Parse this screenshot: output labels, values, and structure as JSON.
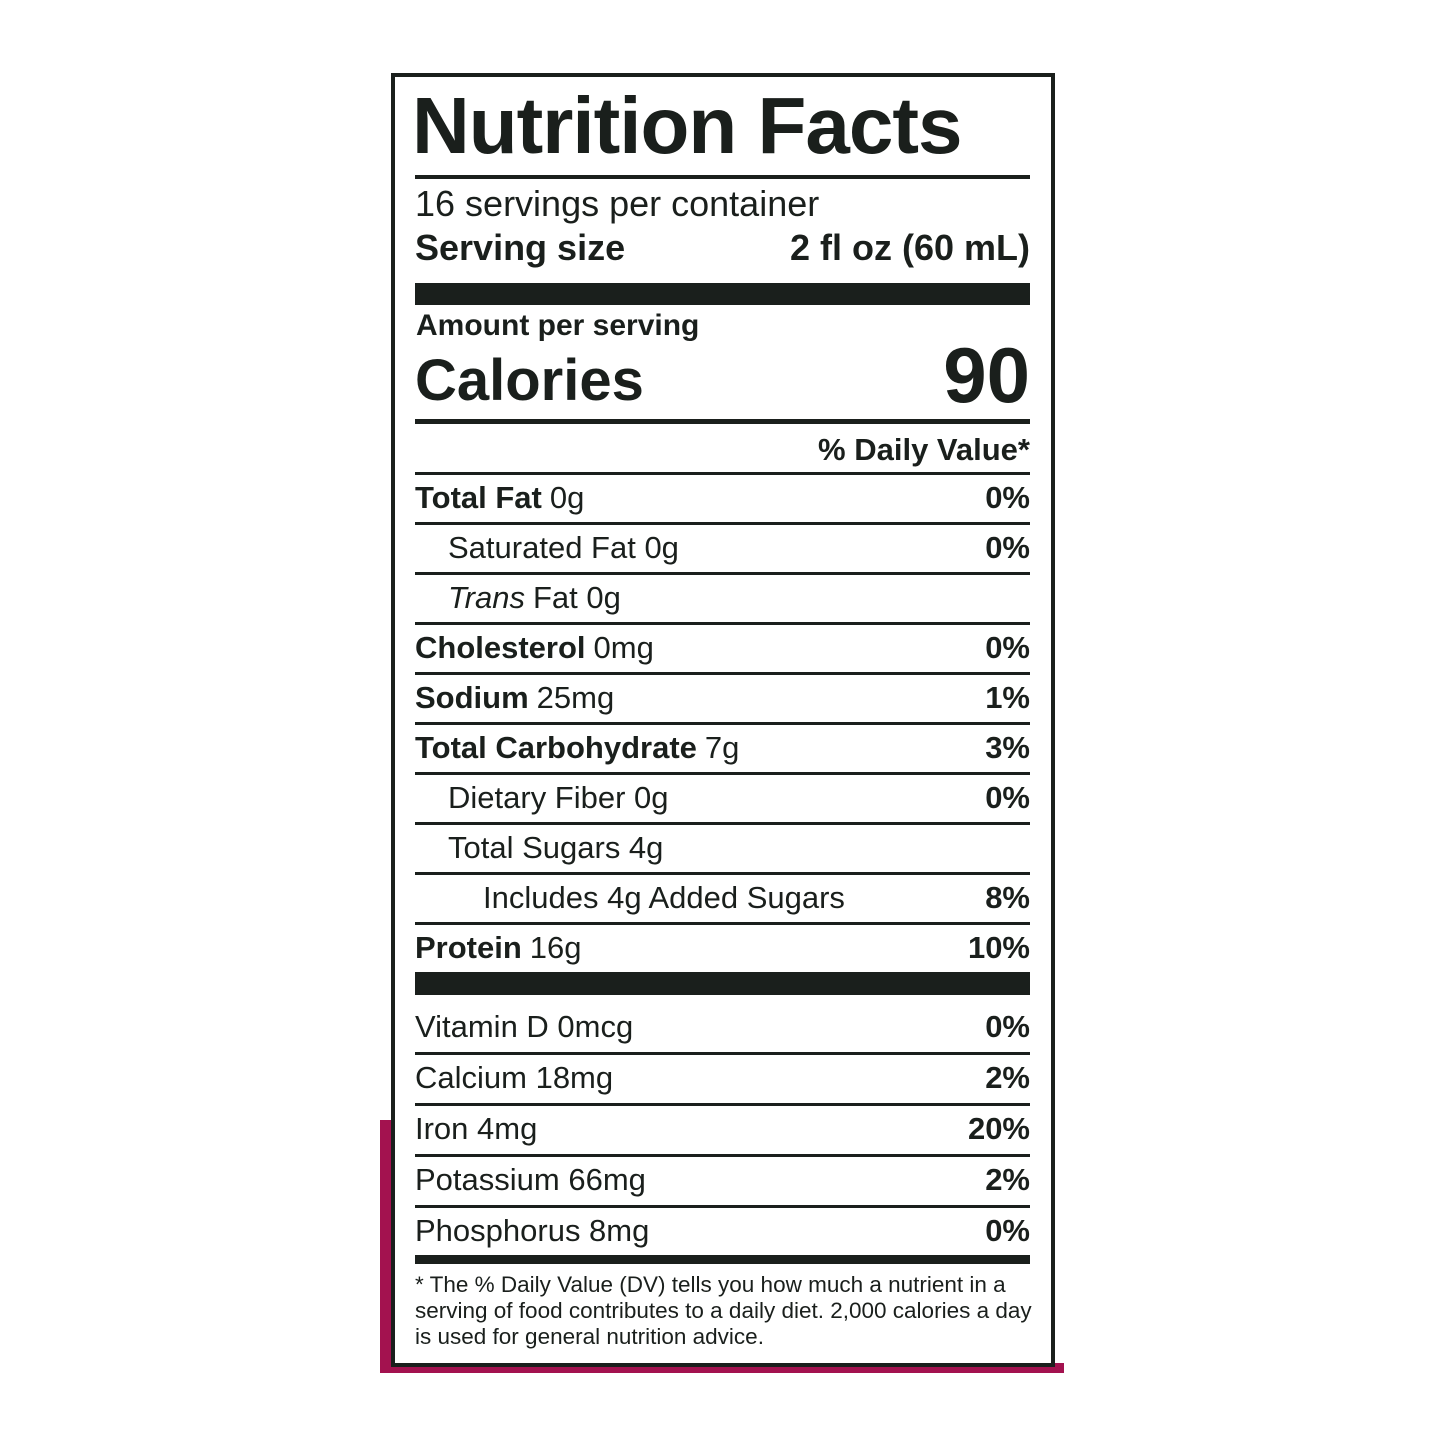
{
  "title": "Nutrition Facts",
  "servings": "16 servings per container",
  "serving_size": {
    "label": "Serving size",
    "value": "2 fl oz (60 mL)"
  },
  "amount_per_serving": "Amount per serving",
  "calories": {
    "label": "Calories",
    "value": "90"
  },
  "dv_header": "% Daily Value*",
  "nutrients": [
    {
      "parts": [
        {
          "text": "Total Fat",
          "style": "bold"
        },
        {
          "text": "0g"
        }
      ],
      "dv": "0%",
      "indent": 0
    },
    {
      "parts": [
        {
          "text": "Saturated Fat 0g"
        }
      ],
      "dv": "0%",
      "indent": 1
    },
    {
      "parts": [
        {
          "text": "Trans",
          "style": "italic"
        },
        {
          "text": "Fat 0g"
        }
      ],
      "indent": 1
    },
    {
      "parts": [
        {
          "text": "Cholesterol",
          "style": "bold"
        },
        {
          "text": "0mg"
        }
      ],
      "dv": "0%",
      "indent": 0
    },
    {
      "parts": [
        {
          "text": "Sodium",
          "style": "bold"
        },
        {
          "text": "25mg"
        }
      ],
      "dv": "1%",
      "indent": 0
    },
    {
      "parts": [
        {
          "text": "Total Carbohydrate",
          "style": "bold"
        },
        {
          "text": "7g"
        }
      ],
      "dv": "3%",
      "indent": 0
    },
    {
      "parts": [
        {
          "text": "Dietary Fiber 0g"
        }
      ],
      "dv": "0%",
      "indent": 1
    },
    {
      "parts": [
        {
          "text": "Total Sugars 4g"
        }
      ],
      "indent": 1
    },
    {
      "parts": [
        {
          "text": "Includes 4g Added Sugars"
        }
      ],
      "dv": "8%",
      "indent": 2
    },
    {
      "parts": [
        {
          "text": "Protein",
          "style": "bold"
        },
        {
          "text": "16g"
        }
      ],
      "dv": "10%",
      "indent": 0
    }
  ],
  "vitamins": [
    {
      "name": "Vitamin D 0mcg",
      "dv": "0%"
    },
    {
      "name": "Calcium 18mg",
      "dv": "2%"
    },
    {
      "name": "Iron 4mg",
      "dv": "20%"
    },
    {
      "name": "Potassium 66mg",
      "dv": "2%"
    },
    {
      "name": "Phosphorus 8mg",
      "dv": "0%"
    }
  ],
  "footnote": "* The % Daily Value (DV) tells you how much a nutrient in a serving of food contributes to a daily diet. 2,000 calories a day is used for general nutrition advice."
}
